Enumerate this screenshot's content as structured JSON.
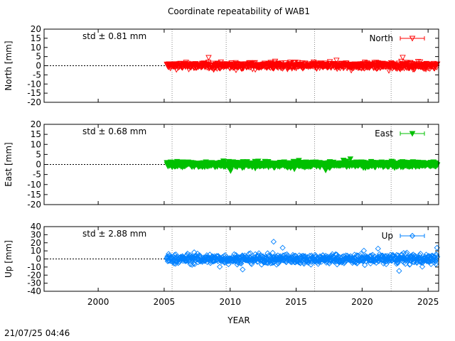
{
  "chart_data": {
    "type": "scatter",
    "title": "Coordinate repeatability of WAB1",
    "xlabel": "YEAR",
    "x_ticks": [
      "2000",
      "2005",
      "2010",
      "2015",
      "2020",
      "2025"
    ],
    "xlim": [
      1995.9,
      2025.8
    ],
    "grid": "vertical dotted lines at equipment changes",
    "vlines": [
      2005.6,
      2009.7,
      2016.4,
      2022.2
    ],
    "data_start": 2005.2,
    "data_end": 2025.7,
    "timestamp": "21/07/25 04:46",
    "panels": [
      {
        "ylabel": "North [mm]",
        "ylim": [
          -20,
          20
        ],
        "y_ticks": [
          "20",
          "15",
          "10",
          "5",
          "0",
          "-5",
          "-10",
          "-15",
          "-20"
        ],
        "y_tick_values": [
          20,
          15,
          10,
          5,
          0,
          -5,
          -10,
          -15,
          -20
        ],
        "std_label": "std ± 0.81 mm",
        "legend": "North",
        "color": "#ff0000",
        "marker": "triangle-down-open",
        "std": 0.81
      },
      {
        "ylabel": "East [mm]",
        "ylim": [
          -20,
          20
        ],
        "y_ticks": [
          "20",
          "15",
          "10",
          "5",
          "0",
          "-5",
          "-10",
          "-15",
          "-20"
        ],
        "y_tick_values": [
          20,
          15,
          10,
          5,
          0,
          -5,
          -10,
          -15,
          -20
        ],
        "std_label": "std ± 0.68 mm",
        "legend": "East",
        "color": "#00c000",
        "marker": "triangle-down-filled",
        "std": 0.68
      },
      {
        "ylabel": "Up [mm]",
        "ylim": [
          -40,
          40
        ],
        "y_ticks": [
          "40",
          "30",
          "20",
          "10",
          "0",
          "-10",
          "-20",
          "-30",
          "-40"
        ],
        "y_tick_values": [
          40,
          30,
          20,
          10,
          0,
          -10,
          -20,
          -30,
          -40
        ],
        "std_label": "std ± 2.88 mm",
        "legend": "Up",
        "color": "#0080ff",
        "marker": "diamond-open",
        "std": 2.88
      }
    ]
  }
}
